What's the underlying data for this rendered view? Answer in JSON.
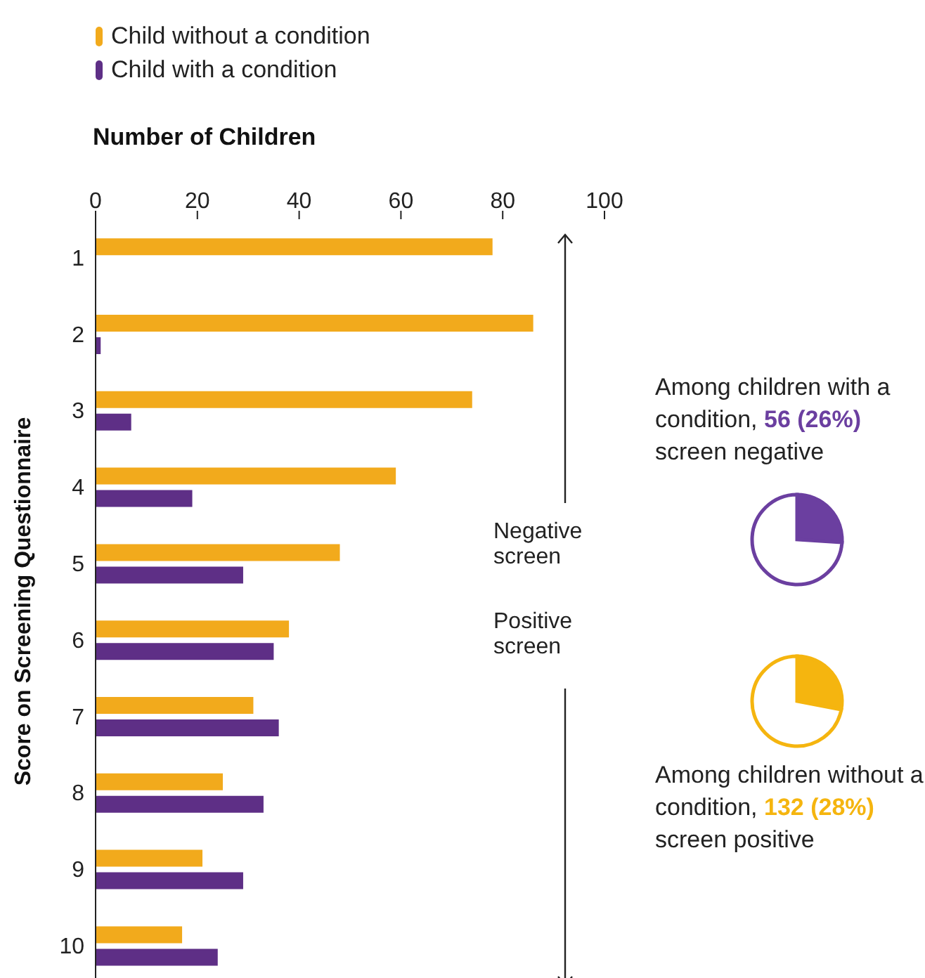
{
  "chart_data": [
    {
      "type": "bar",
      "orientation": "horizontal",
      "xlabel": "Number of Children",
      "ylabel": "Score on Screening Questionnaire",
      "categories": [
        "1",
        "2",
        "3",
        "4",
        "5",
        "6",
        "7",
        "8",
        "9",
        "10"
      ],
      "series": [
        {
          "name": "Child without a condition",
          "color": "#f2aa1c",
          "values": [
            78,
            86,
            74,
            59,
            48,
            38,
            31,
            25,
            21,
            17
          ]
        },
        {
          "name": "Child with a condition",
          "color": "#5e2f86",
          "values": [
            0,
            1,
            7,
            19,
            29,
            35,
            36,
            33,
            29,
            24
          ]
        }
      ],
      "xlim": [
        0,
        100
      ],
      "xticks": [
        0,
        20,
        40,
        60,
        80,
        100
      ],
      "legend": "top left",
      "annotations": [
        "Negative screen",
        "Positive screen"
      ]
    },
    {
      "type": "pie",
      "categories": [
        null,
        null
      ],
      "values": [
        26,
        74
      ],
      "colors": [
        "#6b3fa0",
        "#ffffff"
      ],
      "annotations": [
        "Among children with a condition, 56 (26%) screen negative"
      ]
    },
    {
      "type": "pie",
      "categories": [
        null,
        null
      ],
      "values": [
        28,
        72
      ],
      "colors": [
        "#f5b50f",
        "#ffffff"
      ],
      "annotations": [
        "Among children without a condition, 132 (28%) screen positive"
      ]
    }
  ]
}
